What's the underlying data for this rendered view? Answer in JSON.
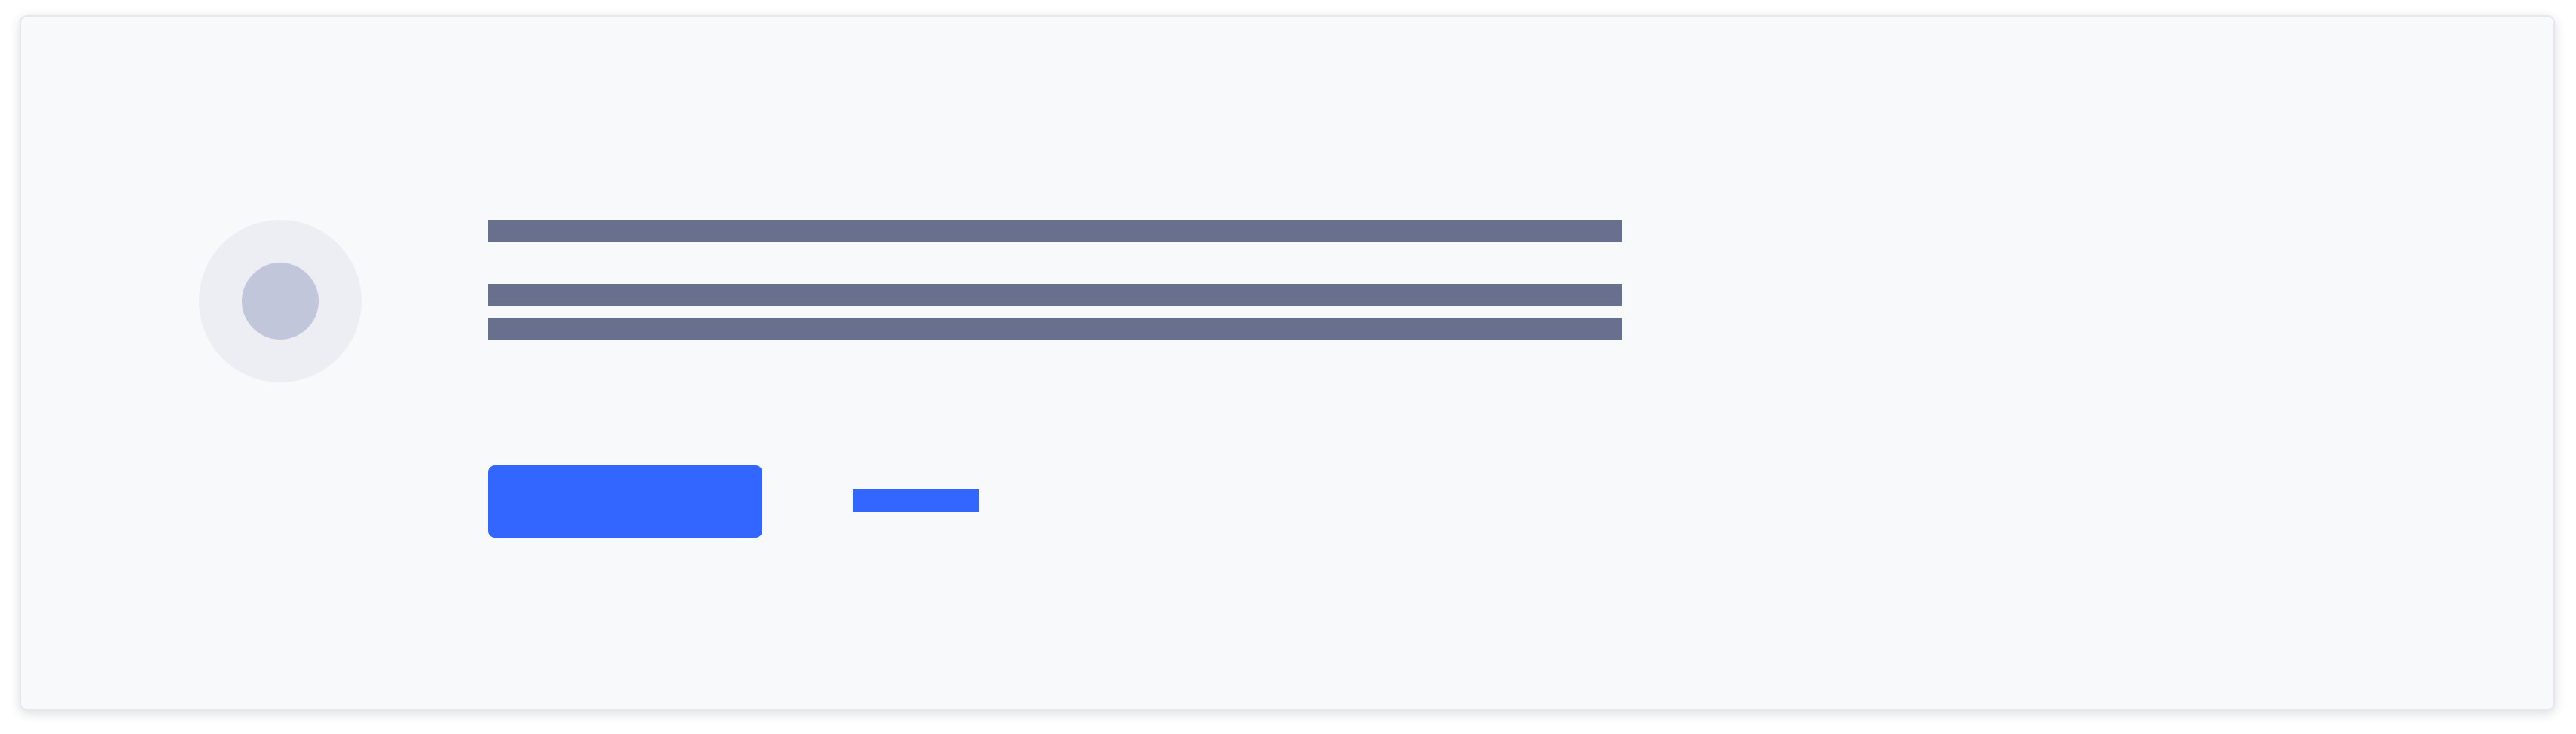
{
  "card": {
    "icon": "placeholder-icon",
    "title": "",
    "body_lines": [
      "",
      ""
    ],
    "primary_button_label": "",
    "secondary_link_label": ""
  },
  "colors": {
    "card_background": "#f8f9fb",
    "placeholder_bar": "#69708d",
    "accent": "#3366ff",
    "icon_outer": "#eceef4",
    "icon_inner": "#c2c6da"
  }
}
